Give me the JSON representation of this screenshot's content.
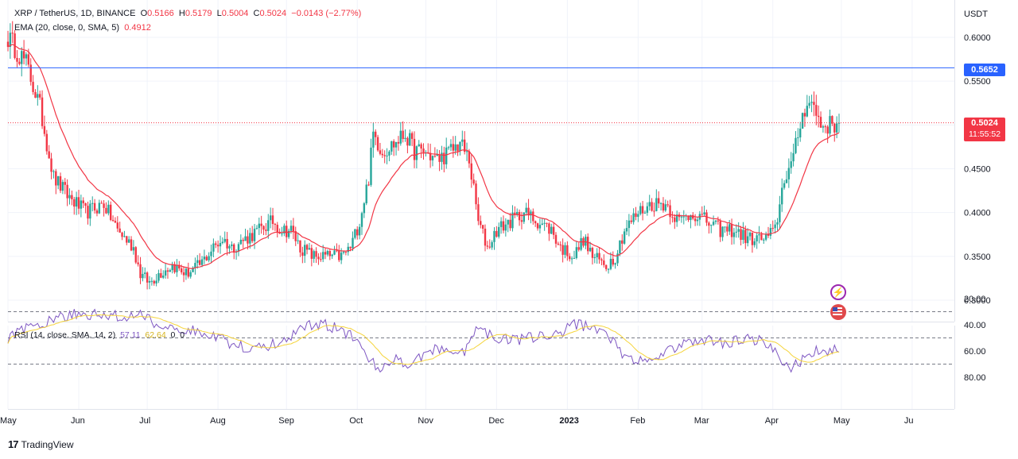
{
  "legend": {
    "symbol": "XRP / TetherUS, 1D, BINANCE",
    "o_label": "O",
    "o": "0.5166",
    "h_label": "H",
    "h": "0.5179",
    "l_label": "L",
    "l": "0.5004",
    "c_label": "C",
    "c": "0.5024",
    "change": "−0.0143 (−2.77%)",
    "ema_label": "EMA (20, close, 0, SMA, 5)",
    "ema_value": "0.4912"
  },
  "rsi_legend": {
    "label": "RSI (14, close, SMA, 14, 2)",
    "value1": "57.11",
    "value2": "62.64",
    "value3": "0",
    "value4": "0"
  },
  "price_axis": {
    "currency": "USDT",
    "ticks": [
      "0.6000",
      "0.5500",
      "0.5000",
      "0.4500",
      "0.4000",
      "0.3500",
      "0.3000"
    ]
  },
  "rsi_axis": {
    "ticks": [
      "80.00",
      "60.00",
      "40.00",
      "20.00"
    ]
  },
  "tags": {
    "horizontal_line": "0.5652",
    "last_price": "0.5024",
    "countdown": "11:55:52"
  },
  "brand": {
    "name": "TradingView"
  },
  "colors": {
    "up": "#26a69a",
    "down": "#f23645",
    "ema": "#f23645",
    "rsi": "#7e57c2",
    "rsi_ma": "#f5d43b",
    "hline": "#2962ff"
  },
  "chart_data": {
    "type": "candlestick",
    "symbol": "XRP / TetherUS",
    "interval": "1D",
    "x_labels": [
      "May",
      "Jun",
      "Jul",
      "Aug",
      "Sep",
      "Oct",
      "Nov",
      "Dec",
      "2023",
      "Feb",
      "Mar",
      "Apr",
      "May",
      "Ju"
    ],
    "price_range": [
      0.28,
      0.62
    ],
    "horizontal_line": 0.5652,
    "last_close": 0.5024,
    "price_path": [
      [
        0,
        0.6
      ],
      [
        8,
        0.57
      ],
      [
        14,
        0.52
      ],
      [
        20,
        0.44
      ],
      [
        26,
        0.42
      ],
      [
        34,
        0.4
      ],
      [
        42,
        0.41
      ],
      [
        48,
        0.38
      ],
      [
        55,
        0.36
      ],
      [
        58,
        0.33
      ],
      [
        62,
        0.32
      ],
      [
        66,
        0.33
      ],
      [
        72,
        0.34
      ],
      [
        78,
        0.33
      ],
      [
        84,
        0.34
      ],
      [
        90,
        0.36
      ],
      [
        94,
        0.37
      ],
      [
        98,
        0.36
      ],
      [
        104,
        0.37
      ],
      [
        110,
        0.38
      ],
      [
        116,
        0.39
      ],
      [
        120,
        0.38
      ],
      [
        124,
        0.38
      ],
      [
        128,
        0.36
      ],
      [
        134,
        0.35
      ],
      [
        140,
        0.35
      ],
      [
        146,
        0.35
      ],
      [
        150,
        0.36
      ],
      [
        154,
        0.39
      ],
      [
        158,
        0.44
      ],
      [
        160,
        0.49
      ],
      [
        164,
        0.47
      ],
      [
        170,
        0.48
      ],
      [
        174,
        0.49
      ],
      [
        178,
        0.47
      ],
      [
        182,
        0.47
      ],
      [
        188,
        0.46
      ],
      [
        194,
        0.47
      ],
      [
        198,
        0.48
      ],
      [
        202,
        0.46
      ],
      [
        206,
        0.39
      ],
      [
        210,
        0.36
      ],
      [
        214,
        0.38
      ],
      [
        220,
        0.39
      ],
      [
        226,
        0.4
      ],
      [
        232,
        0.39
      ],
      [
        238,
        0.38
      ],
      [
        242,
        0.36
      ],
      [
        248,
        0.35
      ],
      [
        252,
        0.37
      ],
      [
        256,
        0.35
      ],
      [
        262,
        0.34
      ],
      [
        266,
        0.35
      ],
      [
        270,
        0.38
      ],
      [
        276,
        0.4
      ],
      [
        282,
        0.41
      ],
      [
        288,
        0.41
      ],
      [
        294,
        0.39
      ],
      [
        300,
        0.4
      ],
      [
        306,
        0.39
      ],
      [
        312,
        0.38
      ],
      [
        318,
        0.38
      ],
      [
        324,
        0.37
      ],
      [
        328,
        0.37
      ],
      [
        332,
        0.37
      ],
      [
        336,
        0.38
      ],
      [
        340,
        0.44
      ],
      [
        344,
        0.46
      ],
      [
        346,
        0.49
      ],
      [
        350,
        0.53
      ],
      [
        353,
        0.52
      ],
      [
        356,
        0.5
      ],
      [
        360,
        0.5
      ],
      [
        364,
        0.5
      ]
    ],
    "ema_period": 20,
    "rsi": {
      "period": 14,
      "ma_period": 14,
      "range": [
        20,
        80
      ],
      "levels": [
        70,
        50,
        30
      ],
      "path": [
        [
          0,
          50
        ],
        [
          10,
          42
        ],
        [
          20,
          35
        ],
        [
          30,
          32
        ],
        [
          40,
          32
        ],
        [
          50,
          34
        ],
        [
          60,
          33
        ],
        [
          66,
          40
        ],
        [
          72,
          42
        ],
        [
          80,
          44
        ],
        [
          90,
          48
        ],
        [
          100,
          56
        ],
        [
          110,
          58
        ],
        [
          120,
          53
        ],
        [
          130,
          40
        ],
        [
          140,
          40
        ],
        [
          150,
          48
        ],
        [
          156,
          62
        ],
        [
          162,
          74
        ],
        [
          170,
          67
        ],
        [
          176,
          70
        ],
        [
          184,
          60
        ],
        [
          192,
          58
        ],
        [
          200,
          62
        ],
        [
          206,
          42
        ],
        [
          212,
          48
        ],
        [
          220,
          52
        ],
        [
          230,
          50
        ],
        [
          240,
          48
        ],
        [
          248,
          40
        ],
        [
          256,
          42
        ],
        [
          262,
          46
        ],
        [
          270,
          64
        ],
        [
          276,
          68
        ],
        [
          284,
          64
        ],
        [
          294,
          56
        ],
        [
          304,
          52
        ],
        [
          314,
          54
        ],
        [
          322,
          50
        ],
        [
          330,
          52
        ],
        [
          336,
          62
        ],
        [
          342,
          74
        ],
        [
          346,
          70
        ],
        [
          350,
          62
        ],
        [
          356,
          60
        ],
        [
          364,
          57
        ]
      ]
    }
  }
}
